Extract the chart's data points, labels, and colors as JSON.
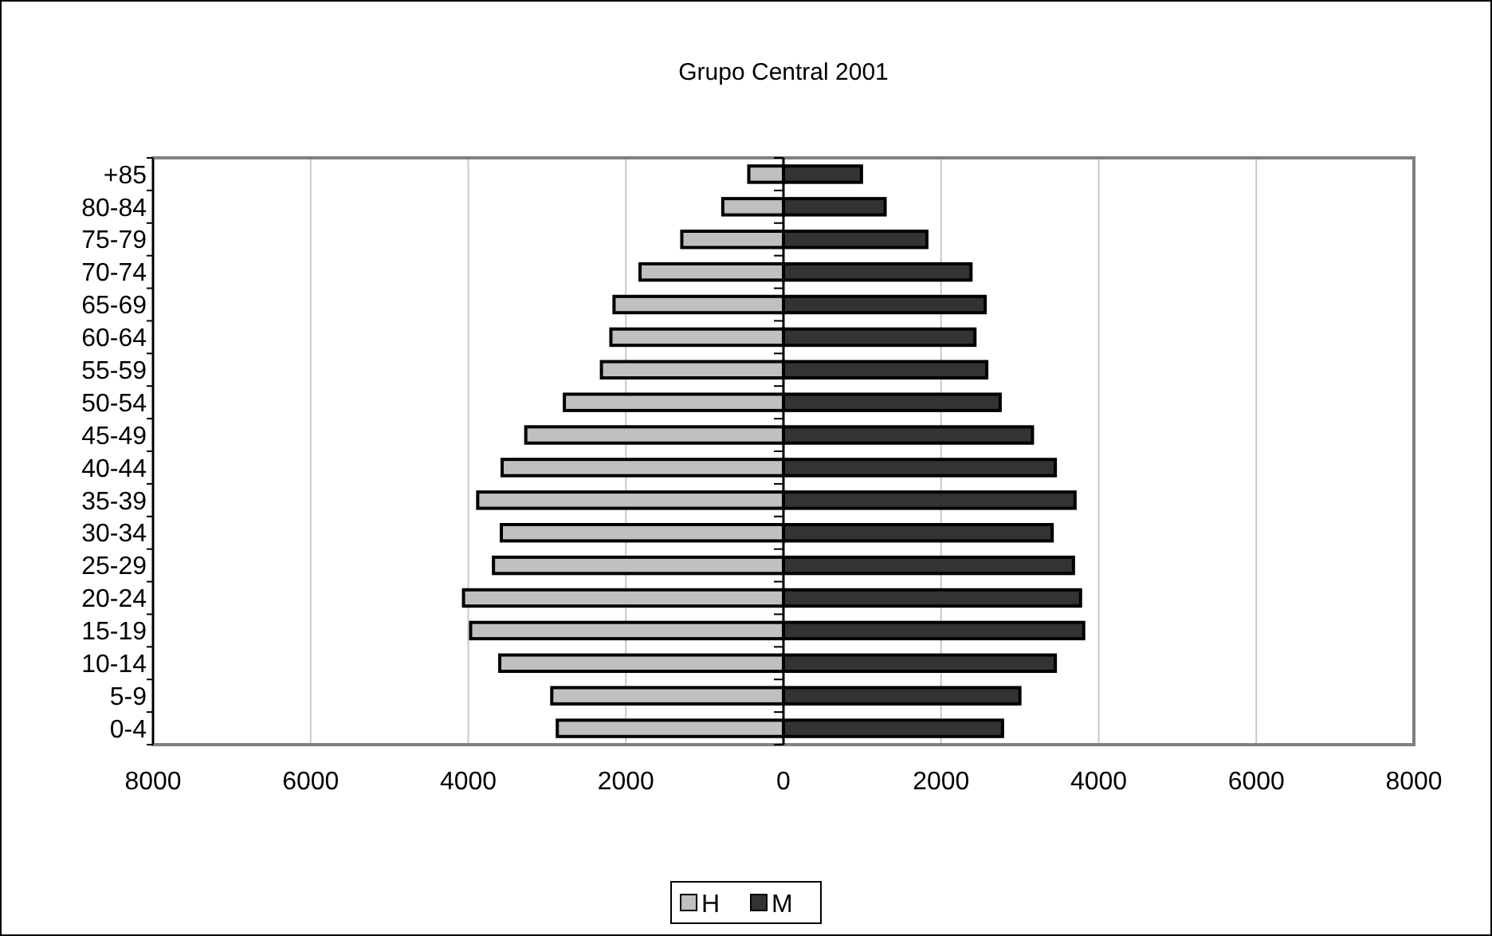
{
  "chart_data": {
    "type": "bar",
    "title": "Grupo Central 2001",
    "orientation": "horizontal",
    "stacked": true,
    "categories": [
      "+85",
      "80-84",
      "75-79",
      "70-74",
      "65-69",
      "60-64",
      "55-59",
      "50-54",
      "45-49",
      "40-44",
      "35-39",
      "30-34",
      "25-29",
      "20-24",
      "15-19",
      "10-14",
      "5-9",
      "0-4"
    ],
    "series": [
      {
        "name": "H",
        "color": "#c0c0c0",
        "values": [
          -440,
          -770,
          -1290,
          -1820,
          -2150,
          -2190,
          -2310,
          -2780,
          -3270,
          -3570,
          -3880,
          -3580,
          -3680,
          -4060,
          -3970,
          -3600,
          -2940,
          -2870
        ]
      },
      {
        "name": "M",
        "color": "#333333",
        "values": [
          990,
          1290,
          1820,
          2380,
          2560,
          2430,
          2580,
          2750,
          3160,
          3450,
          3700,
          3410,
          3680,
          3770,
          3810,
          3450,
          3000,
          2780
        ]
      }
    ],
    "xlim": [
      -8000,
      8000
    ],
    "xticks": [
      {
        "value": -8000,
        "label": "8000"
      },
      {
        "value": -6000,
        "label": "6000"
      },
      {
        "value": -4000,
        "label": "4000"
      },
      {
        "value": -2000,
        "label": "2000"
      },
      0,
      2000,
      4000,
      6000,
      8000
    ],
    "grid": "x",
    "legend": "bottom"
  }
}
